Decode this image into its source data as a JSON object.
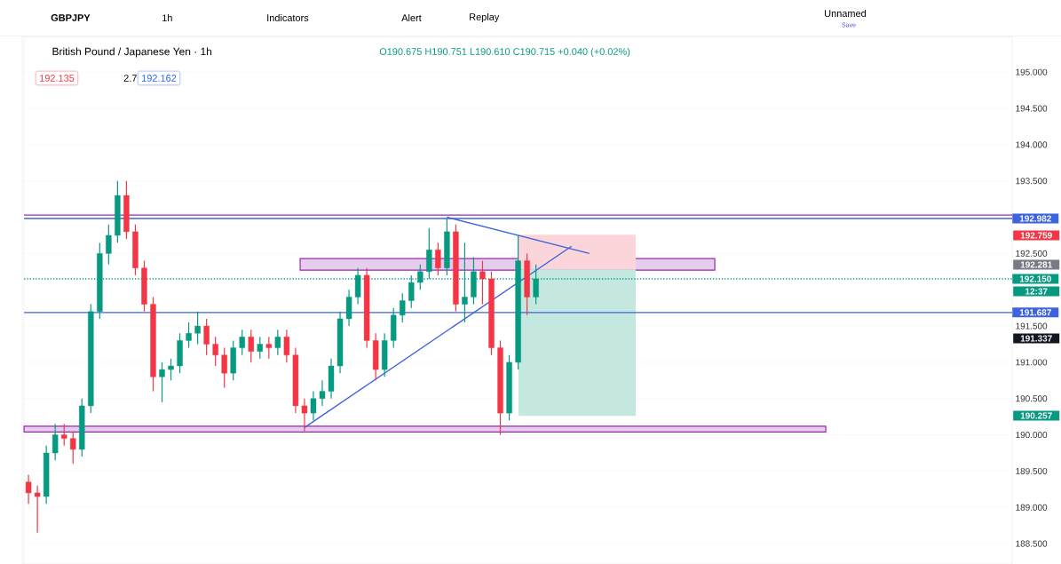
{
  "chart_data": {
    "type": "candlestick",
    "title": "British Pound / Japanese Yen · 1h",
    "categories": [
      null,
      null,
      null,
      null,
      null,
      null,
      null,
      null,
      null,
      null,
      null,
      null,
      null,
      null,
      null,
      null,
      null,
      null,
      null,
      null,
      null,
      null,
      null,
      null,
      null,
      null,
      null,
      null,
      null,
      null,
      null,
      null,
      null,
      null,
      null,
      null,
      null,
      null,
      null,
      null,
      null,
      null,
      null,
      null,
      null,
      null,
      null,
      null,
      null,
      null,
      null,
      null,
      null,
      null,
      null,
      null,
      null,
      null,
      null,
      null,
      null,
      null,
      null,
      null,
      null,
      null,
      null,
      null,
      null,
      null,
      null,
      null,
      null,
      null,
      null,
      null,
      null,
      null,
      null,
      null,
      null,
      null,
      null,
      null,
      null,
      null,
      null,
      null,
      null,
      null,
      null,
      null,
      null,
      null,
      null,
      null,
      null,
      null,
      null,
      null,
      null,
      null,
      null,
      null,
      null,
      null,
      null,
      null,
      null,
      null,
      null
    ],
    "ohlc": [
      [
        189.35,
        189.45,
        189.05,
        189.2
      ],
      [
        189.2,
        189.3,
        188.65,
        189.15
      ],
      [
        189.15,
        189.85,
        189.05,
        189.75
      ],
      [
        189.75,
        190.15,
        189.65,
        190.0
      ],
      [
        190.0,
        190.15,
        189.85,
        189.95
      ],
      [
        189.95,
        190.05,
        189.6,
        189.8
      ],
      [
        189.8,
        190.5,
        189.7,
        190.4
      ],
      [
        190.4,
        191.8,
        190.3,
        191.7
      ],
      [
        191.7,
        192.65,
        191.6,
        192.5
      ],
      [
        192.5,
        192.9,
        192.35,
        192.75
      ],
      [
        192.75,
        193.5,
        192.65,
        193.3
      ],
      [
        193.3,
        193.5,
        192.7,
        192.8
      ],
      [
        192.8,
        192.9,
        192.2,
        192.3
      ],
      [
        192.3,
        192.4,
        191.7,
        191.8
      ],
      [
        191.8,
        191.9,
        190.6,
        190.8
      ],
      [
        190.8,
        191.0,
        190.45,
        190.9
      ],
      [
        190.9,
        191.05,
        190.75,
        190.95
      ],
      [
        190.95,
        191.4,
        190.85,
        191.3
      ],
      [
        191.3,
        191.55,
        191.2,
        191.4
      ],
      [
        191.4,
        191.7,
        191.25,
        191.5
      ],
      [
        191.5,
        191.6,
        191.1,
        191.25
      ],
      [
        191.25,
        191.35,
        190.95,
        191.1
      ],
      [
        191.1,
        191.2,
        190.65,
        190.85
      ],
      [
        190.85,
        191.3,
        190.75,
        191.2
      ],
      [
        191.2,
        191.45,
        191.1,
        191.35
      ],
      [
        191.35,
        191.45,
        191.0,
        191.15
      ],
      [
        191.15,
        191.35,
        191.05,
        191.25
      ],
      [
        191.25,
        191.35,
        191.05,
        191.2
      ],
      [
        191.2,
        191.45,
        191.1,
        191.35
      ],
      [
        191.35,
        191.45,
        191.0,
        191.1
      ],
      [
        191.1,
        191.2,
        190.3,
        190.4
      ],
      [
        190.4,
        190.5,
        190.05,
        190.3
      ],
      [
        190.3,
        190.6,
        190.2,
        190.5
      ],
      [
        190.5,
        190.75,
        190.4,
        190.6
      ],
      [
        190.6,
        191.05,
        190.5,
        190.95
      ],
      [
        190.95,
        191.7,
        190.85,
        191.6
      ],
      [
        191.6,
        192.0,
        191.5,
        191.9
      ],
      [
        191.9,
        192.3,
        191.8,
        192.2
      ],
      [
        192.2,
        192.3,
        191.2,
        191.3
      ],
      [
        191.3,
        191.4,
        190.75,
        190.9
      ],
      [
        190.9,
        191.4,
        190.8,
        191.3
      ],
      [
        191.3,
        191.75,
        191.2,
        191.65
      ],
      [
        191.65,
        191.95,
        191.55,
        191.85
      ],
      [
        191.85,
        192.2,
        191.75,
        192.1
      ],
      [
        192.1,
        192.35,
        192.0,
        192.25
      ],
      [
        192.25,
        192.85,
        192.15,
        192.55
      ],
      [
        192.55,
        192.65,
        192.2,
        192.3
      ],
      [
        192.3,
        192.98,
        192.2,
        192.8
      ],
      [
        192.8,
        192.9,
        191.7,
        191.8
      ],
      [
        191.8,
        192.65,
        191.55,
        191.9
      ],
      [
        191.9,
        192.45,
        191.8,
        192.25
      ],
      [
        192.25,
        192.4,
        191.8,
        192.15
      ],
      [
        192.15,
        192.25,
        191.1,
        191.2
      ],
      [
        191.2,
        191.3,
        190.0,
        190.3
      ],
      [
        190.3,
        191.1,
        190.2,
        191.0
      ],
      [
        191.0,
        192.75,
        190.9,
        192.4
      ],
      [
        192.4,
        192.5,
        191.65,
        191.9
      ],
      [
        191.9,
        192.35,
        191.8,
        192.15
      ],
      null,
      null,
      null,
      null,
      null,
      null,
      null,
      null,
      null,
      null,
      null,
      null,
      null,
      null,
      null,
      null,
      null,
      null,
      null,
      null,
      null,
      null,
      null,
      null,
      null,
      null,
      null,
      null,
      null,
      null,
      null,
      null,
      null,
      null,
      null,
      null,
      null,
      null,
      null,
      null,
      null,
      null,
      null,
      null,
      null,
      null,
      null,
      null,
      null,
      null,
      null,
      null,
      null
    ],
    "series": [
      {
        "type": "line",
        "color": "#3d63dd",
        "values": [
          null,
          null,
          null,
          null,
          null,
          null,
          null,
          null,
          null,
          null,
          null,
          null,
          null,
          null,
          null,
          null,
          null,
          null,
          null,
          null,
          null,
          null,
          null,
          null,
          null,
          null,
          null,
          null,
          null,
          null,
          null,
          190.1,
          null,
          null,
          null,
          null,
          null,
          null,
          null,
          null,
          null,
          null,
          null,
          null,
          null,
          null,
          null,
          null,
          null,
          null,
          null,
          null,
          null,
          null,
          null,
          null,
          null,
          null,
          null,
          null,
          null,
          192.6,
          null,
          null,
          null,
          null,
          null,
          null,
          null,
          null,
          null,
          null,
          null,
          null,
          null,
          null,
          null,
          null,
          null,
          null,
          null,
          null,
          null,
          null,
          null,
          null,
          null,
          null,
          null,
          null,
          null,
          null,
          null,
          null,
          null,
          null,
          null,
          null,
          null,
          null,
          null,
          null,
          null,
          null,
          null,
          null,
          null,
          null,
          null,
          null,
          null
        ]
      },
      {
        "type": "line",
        "color": "#3d63dd",
        "values": [
          null,
          null,
          null,
          null,
          null,
          null,
          null,
          null,
          null,
          null,
          null,
          null,
          null,
          null,
          null,
          null,
          null,
          null,
          null,
          null,
          null,
          null,
          null,
          null,
          null,
          null,
          null,
          null,
          null,
          null,
          null,
          null,
          null,
          null,
          null,
          null,
          null,
          null,
          null,
          null,
          null,
          null,
          null,
          null,
          null,
          null,
          null,
          193.0,
          null,
          null,
          null,
          null,
          null,
          null,
          null,
          null,
          null,
          null,
          null,
          null,
          null,
          null,
          null,
          192.5,
          null,
          null,
          null,
          null,
          null,
          null,
          null,
          null,
          null,
          null,
          null,
          null,
          null,
          null,
          null,
          null,
          null,
          null,
          null,
          null,
          null,
          null,
          null,
          null,
          null,
          null,
          null,
          null,
          null,
          null,
          null,
          null,
          null,
          null,
          null,
          null,
          null,
          null,
          null,
          null,
          null,
          null,
          null,
          null,
          null,
          null,
          null
        ]
      }
    ],
    "bands": [
      {
        "axis": "y",
        "from": 190.04,
        "to": 190.12,
        "color": "#e6cdee"
      },
      {
        "axis": "y",
        "from": 192.27,
        "to": 192.43,
        "color": "#e6cdee"
      },
      {
        "axis": "y",
        "from": 192.28,
        "to": 192.76,
        "color": "#fbd5d9"
      },
      {
        "axis": "y",
        "from": 190.26,
        "to": 192.28,
        "color": "#c4e8df"
      }
    ],
    "ylim": [
      188.22,
      195.48
    ],
    "yticks": [
      {
        "value": 188.5,
        "label": "188.500"
      },
      {
        "value": 189,
        "label": "189.000"
      },
      {
        "value": 189.5,
        "label": "189.500"
      },
      {
        "value": 190,
        "label": "190.000"
      },
      {
        "value": 190.5,
        "label": "190.500"
      },
      {
        "value": 191,
        "label": "191.000"
      },
      {
        "value": 191.5,
        "label": "191.500"
      },
      {
        "value": 192.5,
        "label": "192.500"
      },
      {
        "value": 193.5,
        "label": "193.500"
      },
      {
        "value": 194,
        "label": "194.000"
      },
      {
        "value": 194.5,
        "label": "194.500"
      },
      {
        "value": 195,
        "label": "195.000"
      }
    ],
    "grid": "y",
    "tick_labels": "y",
    "ref_lines": [
      {
        "axis": "y",
        "value": 193.03,
        "color": "#9c27b0",
        "line_style": "solid"
      },
      {
        "axis": "y",
        "value": 192.982,
        "label": "192.982",
        "color": "#3d63dd",
        "line_style": "solid"
      },
      {
        "axis": "y",
        "value": 192.15,
        "label": "192.150",
        "color": "#089981",
        "line_style": "dotted"
      },
      {
        "axis": "y",
        "value": 191.687,
        "label": "191.687",
        "color": "#3d63dd",
        "line_style": "solid"
      }
    ],
    "annotations": [
      "GBPJPY",
      "1h",
      "Indicators",
      "Alert",
      "Replay",
      "Unnamed",
      "Save",
      "O190.675 H190.751 L190.610 C190.715 +0.040 (+0.02%)",
      "192.135",
      "2.7",
      "192.162",
      "192.759",
      "192.281",
      "12:37",
      "191.337",
      "190.257"
    ]
  }
}
